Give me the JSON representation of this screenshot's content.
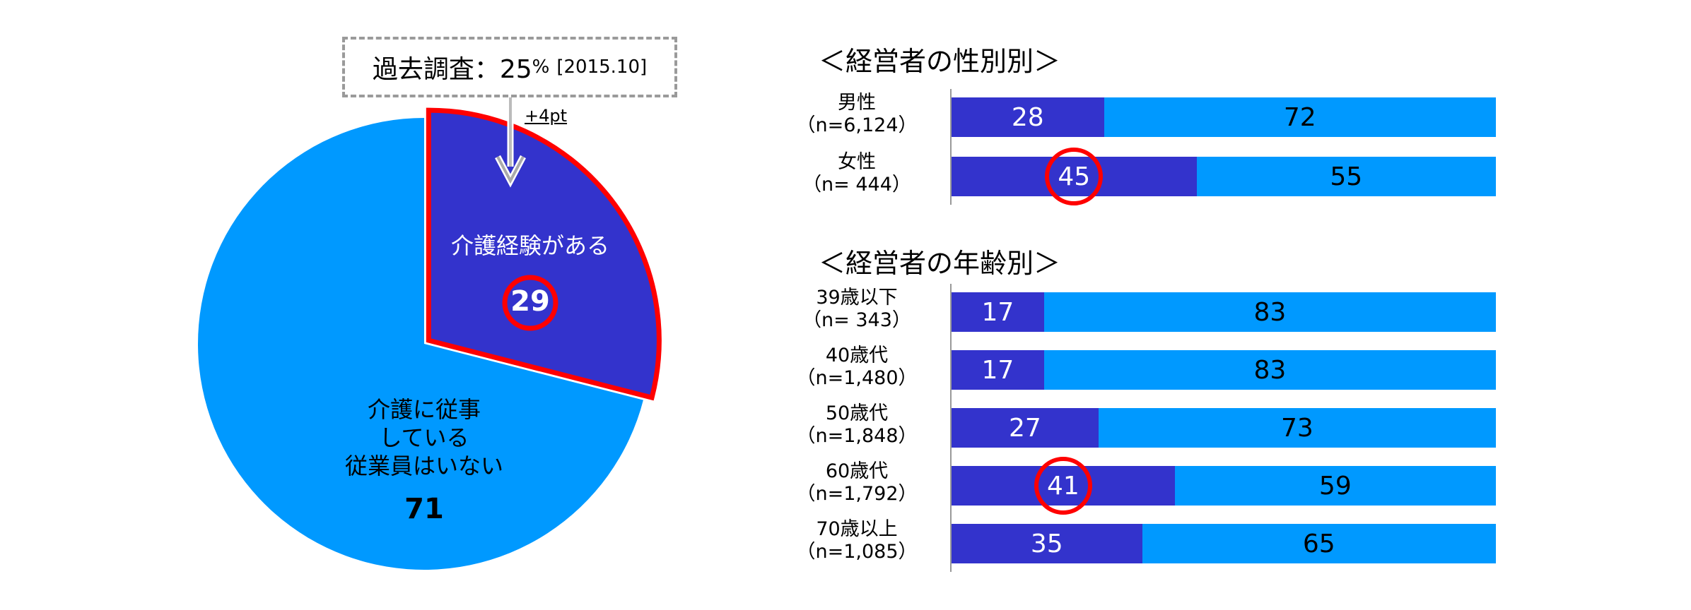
{
  "colors": {
    "dark": "#3333cc",
    "light": "#0099ff",
    "highlight": "#ff0000",
    "dashed_border": "#9a9a9a"
  },
  "past_survey": {
    "main": "過去調査：25",
    "unit": "%",
    "date": "[2015.10]"
  },
  "delta_label": "+4pt",
  "chart_data": [
    {
      "type": "pie",
      "slices": [
        {
          "label": "介護経験がある",
          "value": 29,
          "color": "#3333cc",
          "highlighted": true
        },
        {
          "label_lines": [
            "介護に従事",
            "している",
            "従業員はいない"
          ],
          "value": 71,
          "color": "#0099ff"
        }
      ]
    },
    {
      "type": "bar",
      "stacked": true,
      "horizontal": true,
      "title": "＜経営者の性別別＞",
      "categories": [
        {
          "label": "男性",
          "n": "（n=6,124）"
        },
        {
          "label": "女性",
          "n": "（n=  444）"
        }
      ],
      "series": [
        {
          "values": [
            28,
            45
          ],
          "color": "#3333cc"
        },
        {
          "values": [
            72,
            55
          ],
          "color": "#0099ff"
        }
      ],
      "highlighted": [
        1
      ]
    },
    {
      "type": "bar",
      "stacked": true,
      "horizontal": true,
      "title": "＜経営者の年齢別＞",
      "categories": [
        {
          "label": "39歳以下",
          "n": "（n=  343）"
        },
        {
          "label": "40歳代",
          "n": "（n=1,480）"
        },
        {
          "label": "50歳代",
          "n": "（n=1,848）"
        },
        {
          "label": "60歳代",
          "n": "（n=1,792）"
        },
        {
          "label": "70歳以上",
          "n": "（n=1,085）"
        }
      ],
      "series": [
        {
          "values": [
            17,
            17,
            27,
            41,
            35
          ],
          "color": "#3333cc"
        },
        {
          "values": [
            83,
            83,
            73,
            59,
            65
          ],
          "color": "#0099ff"
        }
      ],
      "highlighted": [
        3
      ]
    }
  ]
}
